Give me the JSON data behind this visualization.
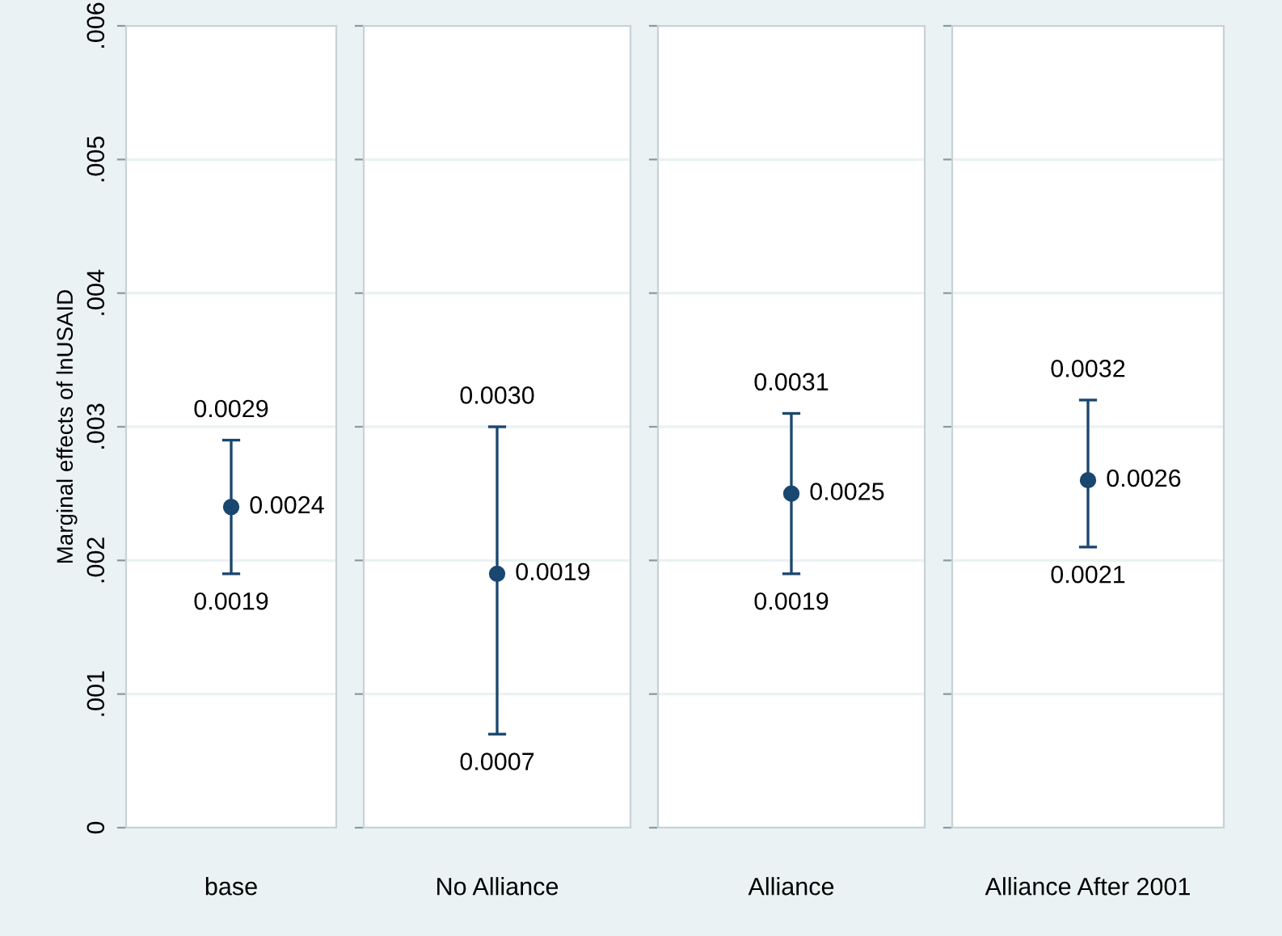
{
  "chart_data": [
    {
      "type": "scatter",
      "categories": [
        "base"
      ],
      "ylabel": "Marginal effects of lnUSAID",
      "ylim": [
        0,
        0.006
      ],
      "yticks": [
        0,
        {
          "value": 0.001,
          "label": ".001"
        },
        {
          "value": 0.002,
          "label": ".002"
        },
        {
          "value": 0.003,
          "label": ".003"
        },
        {
          "value": 0.004,
          "label": ".004"
        },
        {
          "value": 0.005,
          "label": ".005"
        },
        {
          "value": 0.006,
          "label": ".006"
        }
      ],
      "grid": "y",
      "marker": "circle",
      "data_labels": true,
      "series": [
        {
          "color": "#1a476f",
          "values": [
            0.0024
          ],
          "errors": [
            [
              0.0019,
              0.0029
            ]
          ]
        }
      ],
      "annotations": [
        {
          "text": "0.0029",
          "x": "base",
          "y": 0.0029
        },
        {
          "text": "0.0019",
          "x": "base",
          "y": 0.0019
        }
      ]
    },
    {
      "type": "scatter",
      "categories": [
        "No Alliance"
      ],
      "ylim": [
        0,
        0.006
      ],
      "yticks": [
        {
          "value": 0,
          "label": null
        },
        {
          "value": 0.001,
          "label": null
        },
        {
          "value": 0.002,
          "label": null
        },
        {
          "value": 0.003,
          "label": null
        },
        {
          "value": 0.004,
          "label": null
        },
        {
          "value": 0.005,
          "label": null
        },
        {
          "value": 0.006,
          "label": null
        }
      ],
      "grid": "y",
      "marker": "circle",
      "data_labels": true,
      "tick_labels": "x",
      "series": [
        {
          "color": "#1a476f",
          "values": [
            0.0019
          ],
          "errors": [
            [
              0.0007,
              0.003
            ]
          ]
        }
      ],
      "annotations": [
        {
          "text": "0.0030",
          "x": "No Alliance",
          "y": 0.003
        },
        {
          "text": "0.0007",
          "x": "No Alliance",
          "y": 0.0007
        }
      ]
    },
    {
      "type": "scatter",
      "categories": [
        "Alliance"
      ],
      "ylim": [
        0,
        0.006
      ],
      "yticks": [
        {
          "value": 0,
          "label": null
        },
        {
          "value": 0.001,
          "label": null
        },
        {
          "value": 0.002,
          "label": null
        },
        {
          "value": 0.003,
          "label": null
        },
        {
          "value": 0.004,
          "label": null
        },
        {
          "value": 0.005,
          "label": null
        },
        {
          "value": 0.006,
          "label": null
        }
      ],
      "grid": "y",
      "marker": "circle",
      "data_labels": true,
      "tick_labels": "x",
      "series": [
        {
          "color": "#1a476f",
          "values": [
            0.0025
          ],
          "errors": [
            [
              0.0019,
              0.0031
            ]
          ]
        }
      ],
      "annotations": [
        {
          "text": "0.0031",
          "x": "Alliance",
          "y": 0.0031
        },
        {
          "text": "0.0019",
          "x": "Alliance",
          "y": 0.0019
        }
      ]
    },
    {
      "type": "scatter",
      "categories": [
        "Alliance After 2001"
      ],
      "ylim": [
        0,
        0.006
      ],
      "yticks": [
        {
          "value": 0,
          "label": null
        },
        {
          "value": 0.001,
          "label": null
        },
        {
          "value": 0.002,
          "label": null
        },
        {
          "value": 0.003,
          "label": null
        },
        {
          "value": 0.004,
          "label": null
        },
        {
          "value": 0.005,
          "label": null
        },
        {
          "value": 0.006,
          "label": null
        }
      ],
      "grid": "y",
      "marker": "circle",
      "data_labels": true,
      "tick_labels": "x",
      "series": [
        {
          "color": "#1a476f",
          "values": [
            0.0026
          ],
          "errors": [
            [
              0.0021,
              0.0032
            ]
          ]
        }
      ],
      "annotations": [
        {
          "text": "0.0032",
          "x": "Alliance After 2001",
          "y": 0.0032
        },
        {
          "text": "0.0021",
          "x": "Alliance After 2001",
          "y": 0.0021
        }
      ]
    }
  ]
}
